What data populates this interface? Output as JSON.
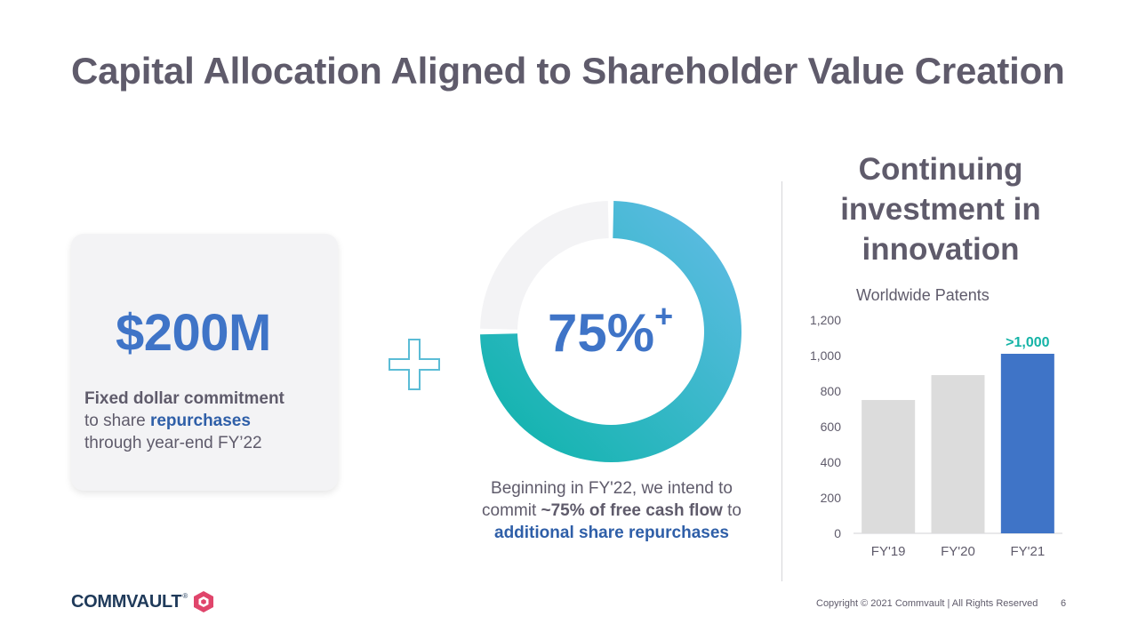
{
  "slide": {
    "title": "Capital Allocation Aligned to Shareholder Value Creation",
    "page_number": "6",
    "copyright": "Copyright © 2021 Commvault  |  All Rights Reserved"
  },
  "logo": {
    "text": "COMMVAULT",
    "tm": "®"
  },
  "card": {
    "amount": "$200M",
    "line1_bold": "Fixed dollar commitment",
    "line2_pre": "to share ",
    "line2_bold": "repurchases",
    "line3": "through  year-end FY’22"
  },
  "donut": {
    "label": "75%",
    "label_sup": "+",
    "fraction": 0.75,
    "colors": {
      "start": "#0ab3a8",
      "end": "#64bce8",
      "remainder": "#f3f3f5"
    },
    "caption_line1": "Beginning in FY'22, we intend to",
    "caption_line2_pre": "commit ",
    "caption_line2_bold": "~75% of free cash flow",
    "caption_line2_post": " to",
    "caption_line3": "additional share repurchases"
  },
  "side": {
    "heading_lines": [
      "Continuing",
      "investment in",
      "innovation"
    ]
  },
  "chart_data": {
    "type": "bar",
    "title": "Worldwide Patents",
    "categories": [
      "FY'19",
      "FY'20",
      "FY'21"
    ],
    "values": [
      750,
      890,
      1010
    ],
    "ylim": [
      0,
      1200
    ],
    "yticks": [
      0,
      200,
      400,
      600,
      800,
      1000,
      1200
    ],
    "ytick_labels": [
      "0",
      "200",
      "400",
      "600",
      "800",
      "1,000",
      "1,200"
    ],
    "data_labels": [
      "",
      "",
      ">1,000"
    ],
    "colors": [
      "#dcdcdc",
      "#dcdcdc",
      "#3f74c7"
    ],
    "data_label_color": "#14b3a6",
    "grid": false,
    "legend": "none"
  }
}
